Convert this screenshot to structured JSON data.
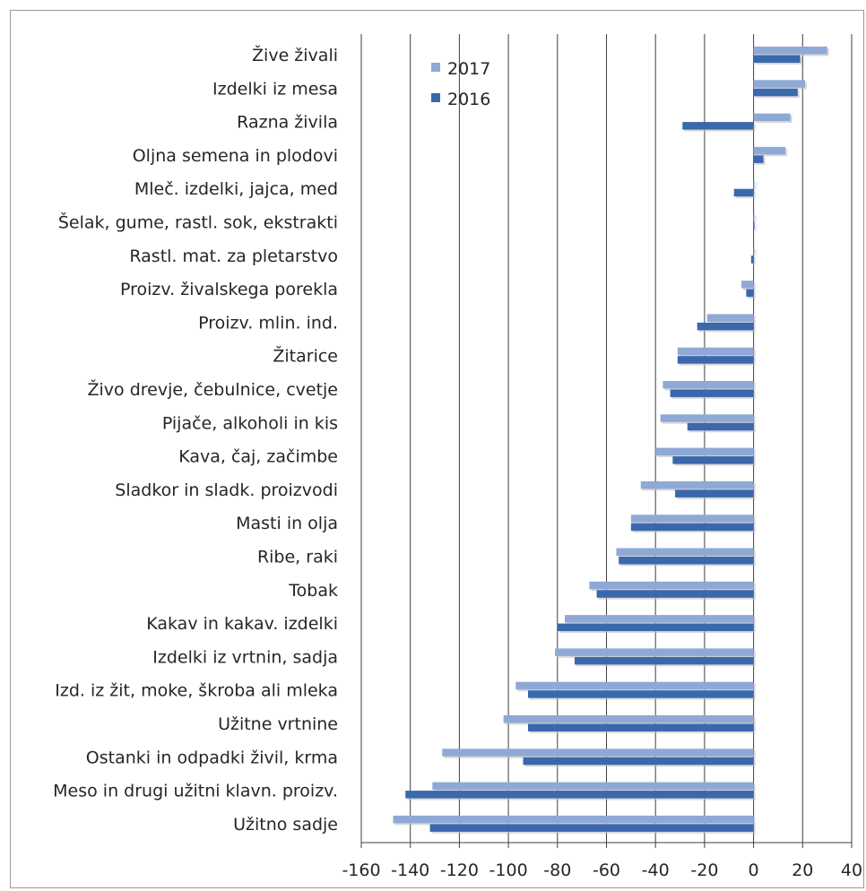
{
  "chart_data": {
    "type": "bar",
    "orientation": "horizontal",
    "categories": [
      "Žive živali",
      "Izdelki iz mesa",
      "Razna živila",
      "Oljna semena in plodovi",
      "Mleč. izdelki, jajca, med",
      "Šelak, gume, rastl. sok, ekstrakti",
      "Rastl. mat. za pletarstvo",
      "Proizv. živalskega porekla",
      "Proizv. mlin. ind.",
      "Žitarice",
      "Živo drevje, čebulnice, cvetje",
      "Pijače, alkoholi in kis",
      "Kava, čaj, začimbe",
      "Sladkor in sladk. proizvodi",
      "Masti in olja",
      "Ribe, raki",
      "Tobak",
      "Kakav in kakav. izdelki",
      "Izdelki iz vrtnin, sadja",
      "Izd. iz žit, moke, škroba ali mleka",
      "Užitne vrtnine",
      "Ostanki in odpadki živil, krma",
      "Meso in drugi užitni klavn. proizv.",
      "Užitno sadje"
    ],
    "series": [
      {
        "name": "2017",
        "color": "#8fa9d6",
        "values": [
          30,
          21,
          15,
          13,
          0,
          0,
          0,
          -5,
          -19,
          -31,
          -37,
          -38,
          -40,
          -46,
          -50,
          -56,
          -67,
          -77,
          -81,
          -97,
          -102,
          -127,
          -131,
          -147
        ]
      },
      {
        "name": "2016",
        "color": "#3a68ac",
        "values": [
          19,
          18,
          -29,
          4,
          -8,
          0,
          -1,
          -3,
          -23,
          -31,
          -34,
          -27,
          -33,
          -32,
          -50,
          -55,
          -64,
          -80,
          -73,
          -92,
          -92,
          -94,
          -142,
          -132
        ]
      }
    ],
    "xlim": [
      -160,
      40
    ],
    "xticks": [
      "-160",
      "-140",
      "-120",
      "-100",
      "-80",
      "-60",
      "-40",
      "-20",
      "0",
      "20",
      "40"
    ],
    "grid": true,
    "legend_position": "top-left"
  }
}
